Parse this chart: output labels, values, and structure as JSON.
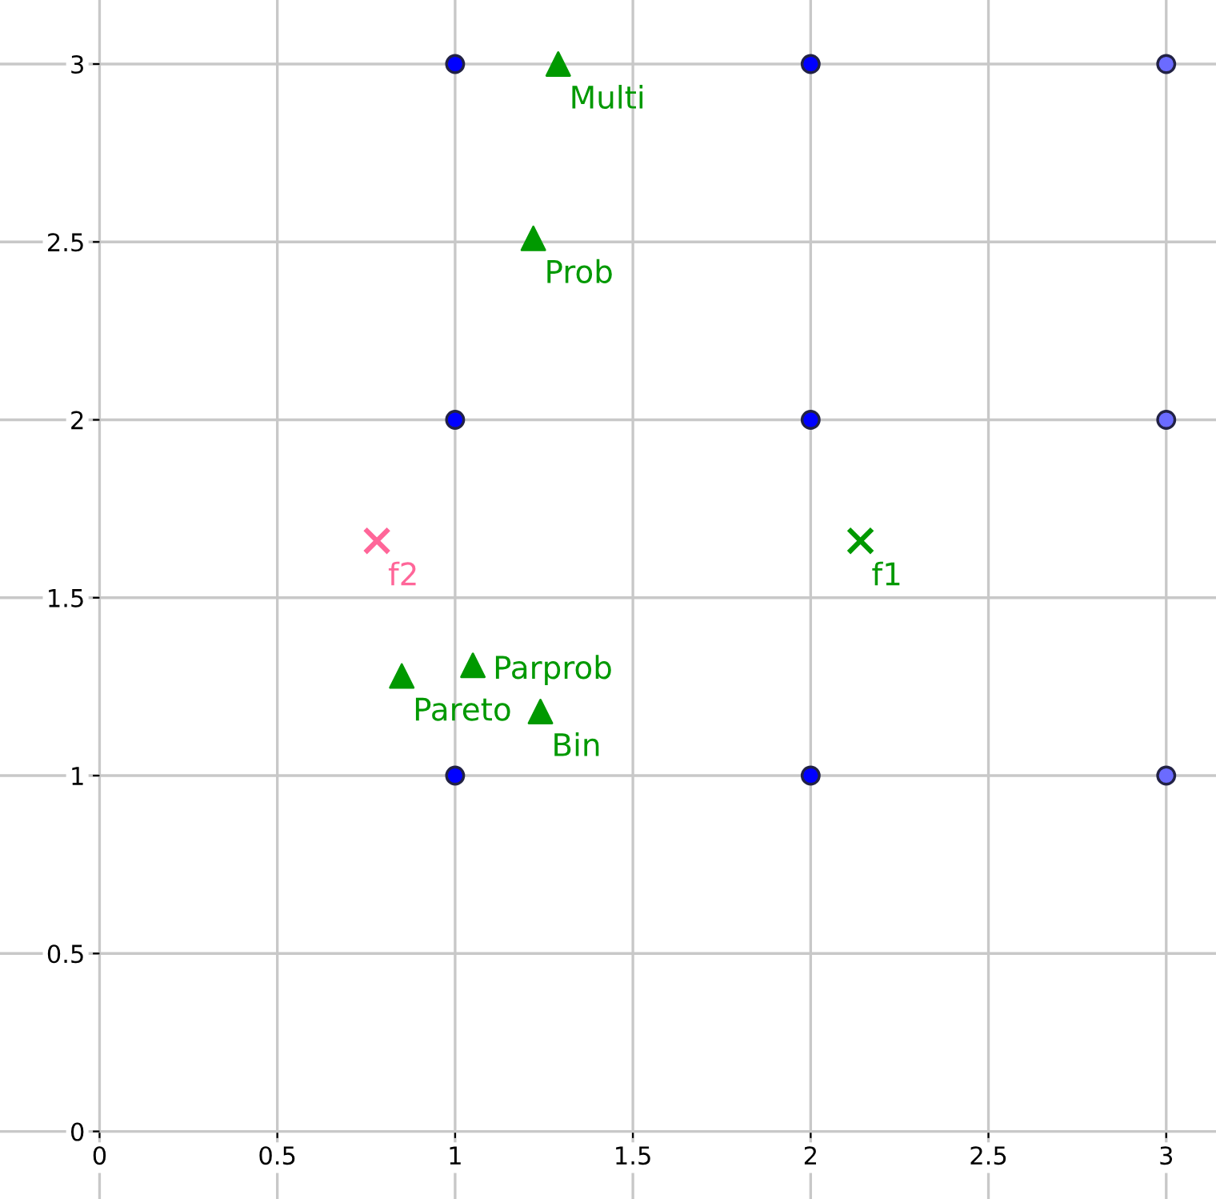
{
  "chart_data": {
    "type": "scatter",
    "xlim": [
      -0.28,
      3.14
    ],
    "ylim": [
      -0.19,
      3.18
    ],
    "xticks": [
      0,
      0.5,
      1,
      1.5,
      2,
      2.5,
      3
    ],
    "yticks": [
      0,
      0.5,
      1,
      1.5,
      2,
      2.5,
      3
    ],
    "grid": true,
    "series": [
      {
        "color": "#0000ff",
        "marker": "circle",
        "x": [
          1,
          2,
          1,
          2,
          1,
          2
        ],
        "values": [
          3,
          3,
          2,
          2,
          1,
          1
        ]
      },
      {
        "color": "#6b6bff",
        "marker": "circle",
        "x": [
          3,
          3,
          3
        ],
        "values": [
          3,
          2,
          1
        ]
      },
      {
        "name": "Multi",
        "color": "#009900",
        "marker": "triangle",
        "x": [
          1.29
        ],
        "values": [
          3.0
        ]
      },
      {
        "name": "Prob",
        "color": "#009900",
        "marker": "triangle",
        "x": [
          1.22
        ],
        "values": [
          2.51
        ]
      },
      {
        "name": "Pareto",
        "color": "#009900",
        "marker": "triangle",
        "x": [
          0.85
        ],
        "values": [
          1.28
        ]
      },
      {
        "name": "Parprob",
        "color": "#009900",
        "marker": "triangle",
        "x": [
          1.05
        ],
        "values": [
          1.31
        ]
      },
      {
        "name": "Bin",
        "color": "#009900",
        "marker": "triangle",
        "x": [
          1.24
        ],
        "values": [
          1.18
        ]
      },
      {
        "name": "f2",
        "color": "#ff6699",
        "marker": "cross",
        "x": [
          0.78
        ],
        "values": [
          1.66
        ]
      },
      {
        "name": "f1",
        "color": "#009900",
        "marker": "cross",
        "x": [
          2.14
        ],
        "values": [
          1.66
        ]
      }
    ]
  }
}
